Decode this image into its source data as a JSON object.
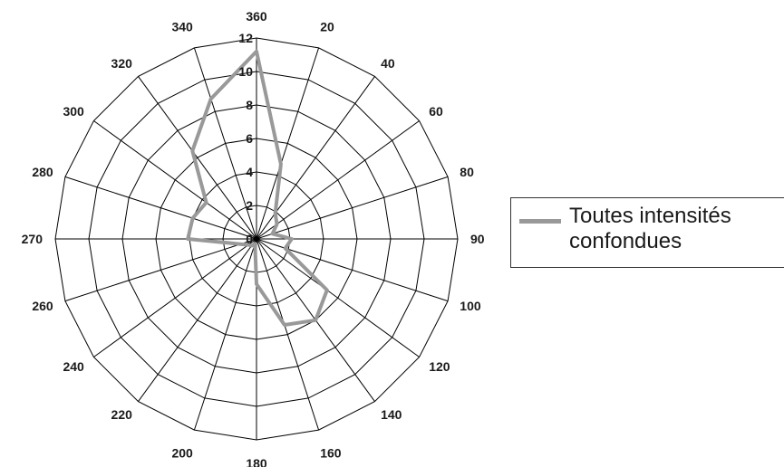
{
  "chart_data": {
    "type": "radar",
    "title": "",
    "angle_labels": [
      "360",
      "20",
      "40",
      "60",
      "80",
      "90",
      "100",
      "120",
      "140",
      "160",
      "180",
      "200",
      "220",
      "240",
      "260",
      "270",
      "280",
      "300",
      "320",
      "340"
    ],
    "radial_ticks": [
      "0",
      "2",
      "4",
      "6",
      "8",
      "10",
      "12"
    ],
    "rmax": 12,
    "grid": true,
    "legend_position": "right",
    "series": [
      {
        "name": "Toutes intensités\nconfondues",
        "color": "#999999",
        "values": [
          11.2,
          4.7,
          1.9,
          1.5,
          1.0,
          2.1,
          1.8,
          5.2,
          6.0,
          5.4,
          2.7,
          0.3,
          0.5,
          0.6,
          1.0,
          4.1,
          4.0,
          3.7,
          6.5,
          8.8
        ]
      }
    ]
  }
}
